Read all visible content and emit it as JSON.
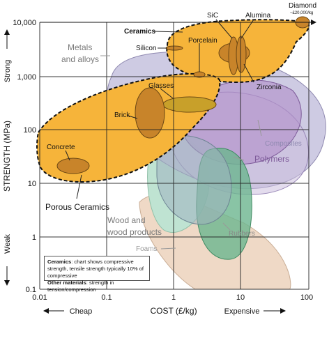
{
  "chart_data": {
    "type": "scatter",
    "xlabel": "COST (£/kg)",
    "ylabel": "STRENGTH (MPa)",
    "x_scale": "log",
    "y_scale": "log",
    "xlim": [
      0.01,
      100
    ],
    "ylim": [
      0.1,
      10000
    ],
    "x_ticks": [
      "0.01",
      "0.1",
      "1",
      "10",
      "100"
    ],
    "y_ticks": [
      "0.1",
      "1",
      "10",
      "100",
      "1,000",
      "10,000"
    ],
    "x_low_label": "Cheap",
    "x_high_label": "Expensive",
    "y_low_label": "Weak",
    "y_high_label": "Strong",
    "grid": true,
    "regions": [
      {
        "name": "Ceramics",
        "kind": "envelope",
        "color": "#f6b43a"
      },
      {
        "name": "Porous Ceramics",
        "kind": "envelope",
        "color": "#f6b43a"
      },
      {
        "name": "Metals and alloys",
        "kind": "envelope",
        "color": "#c6c2de"
      },
      {
        "name": "Composites",
        "kind": "envelope",
        "color": "#ccbfdf"
      },
      {
        "name": "Polymers",
        "kind": "envelope",
        "color": "#b08dc8"
      },
      {
        "name": "Wood and wood products",
        "kind": "envelope",
        "color": "#bfe3d2"
      },
      {
        "name": "Foams",
        "kind": "envelope",
        "color": "#efd9c6"
      },
      {
        "name": "Rubbers",
        "kind": "envelope",
        "color": "#6cb58e"
      }
    ],
    "materials": [
      {
        "name": "Diamond",
        "note": "~£20,000/kg",
        "cost": 100,
        "strength": 10000
      },
      {
        "name": "SiC",
        "cost": 9,
        "strength": 3500
      },
      {
        "name": "Alumina",
        "cost": 12,
        "strength": 3000
      },
      {
        "name": "Zirconia",
        "cost": 10,
        "strength": 3000
      },
      {
        "name": "Porcelain",
        "cost": 2.5,
        "strength": 1100
      },
      {
        "name": "Silicon",
        "cost": 1,
        "strength": 3500
      },
      {
        "name": "Glasses",
        "cost": 2,
        "strength": 300
      },
      {
        "name": "Brick",
        "cost": 0.5,
        "strength": 150
      },
      {
        "name": "Concrete",
        "cost": 0.035,
        "strength": 25
      }
    ]
  },
  "labels": {
    "ceramics": "Ceramics",
    "silicon": "Silicon",
    "porcelain": "Porcelain",
    "sic": "SiC",
    "alumina": "Alumina",
    "zirconia": "Zirconia",
    "diamond": "Diamond",
    "diamond_note": "~£20,000/kg",
    "metals_1": "Metals",
    "metals_2": "and alloys",
    "glasses": "Glasses",
    "brick": "Brick",
    "concrete": "Concrete",
    "porous": "Porous Ceramics",
    "composites": "Composites",
    "polymers": "Polymers",
    "wood_1": "Wood and",
    "wood_2": "wood products",
    "rubbers": "Rubbers",
    "foams": "Foams"
  },
  "note": {
    "ceramics_bold": "Ceramics",
    "ceramics_text": ": chart shows compressive strength, tensile strength typically 10% of compressive",
    "other_bold": "Other materials",
    "other_text": ": strength in tension/compression"
  }
}
